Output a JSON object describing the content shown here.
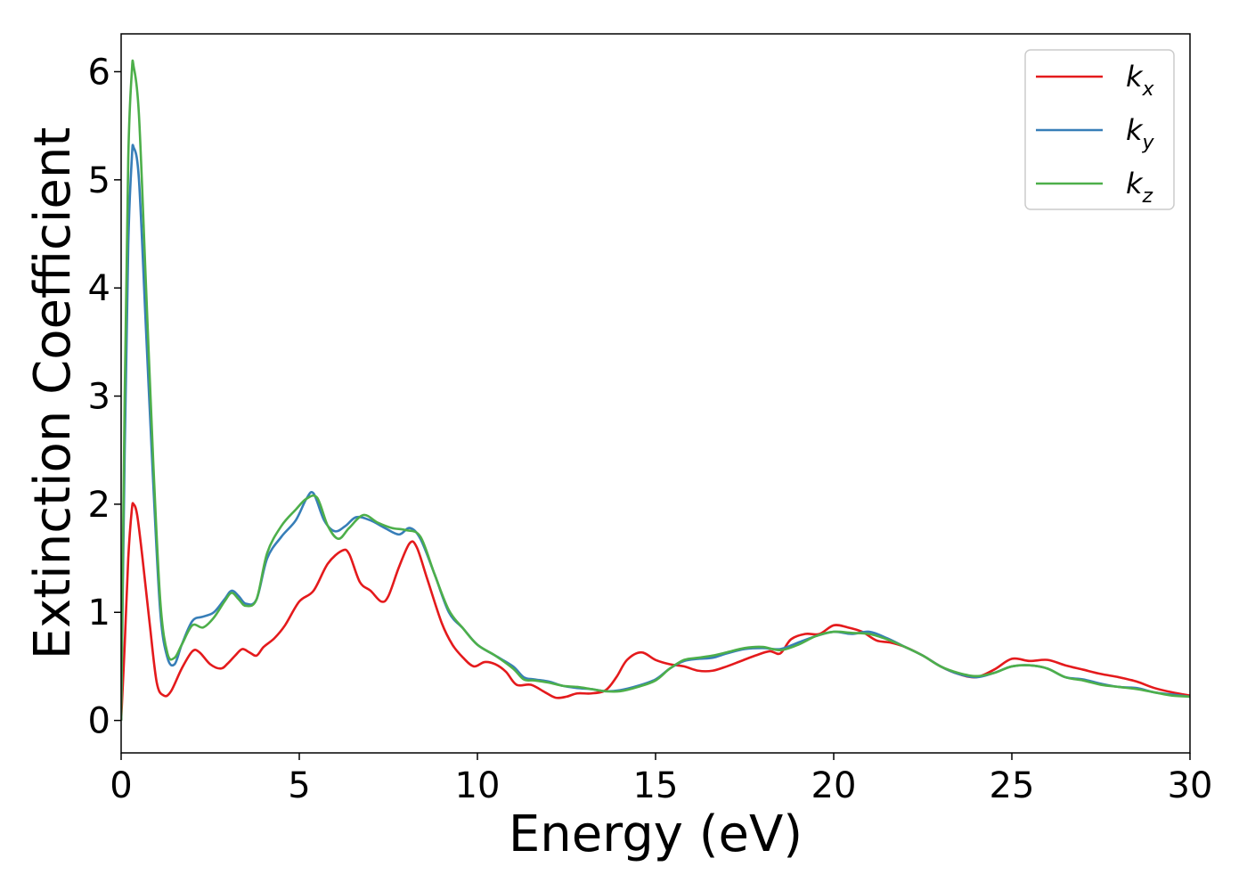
{
  "chart_data": {
    "type": "line",
    "title": "",
    "xlabel": "Energy (eV)",
    "ylabel": "Extinction Coefficient",
    "xlim": [
      0,
      30
    ],
    "ylim": [
      -0.3,
      6.35
    ],
    "xticks": [
      0,
      5,
      10,
      15,
      20,
      25,
      30
    ],
    "yticks": [
      0,
      1,
      2,
      3,
      4,
      5,
      6
    ],
    "grid": false,
    "legend_position": "top-right",
    "series": [
      {
        "name": "k",
        "subscript": "x",
        "color": "#e41a1c",
        "points": [
          [
            0,
            0
          ],
          [
            0.1,
            0.7
          ],
          [
            0.2,
            1.5
          ],
          [
            0.3,
            1.95
          ],
          [
            0.35,
            2.0
          ],
          [
            0.45,
            1.9
          ],
          [
            0.6,
            1.5
          ],
          [
            0.8,
            0.9
          ],
          [
            1.0,
            0.35
          ],
          [
            1.2,
            0.23
          ],
          [
            1.4,
            0.27
          ],
          [
            1.7,
            0.48
          ],
          [
            2.0,
            0.64
          ],
          [
            2.2,
            0.63
          ],
          [
            2.5,
            0.52
          ],
          [
            2.8,
            0.48
          ],
          [
            3.0,
            0.53
          ],
          [
            3.2,
            0.6
          ],
          [
            3.4,
            0.66
          ],
          [
            3.6,
            0.63
          ],
          [
            3.8,
            0.6
          ],
          [
            4.0,
            0.68
          ],
          [
            4.3,
            0.76
          ],
          [
            4.6,
            0.88
          ],
          [
            5.0,
            1.1
          ],
          [
            5.4,
            1.2
          ],
          [
            5.8,
            1.45
          ],
          [
            6.2,
            1.57
          ],
          [
            6.4,
            1.54
          ],
          [
            6.7,
            1.28
          ],
          [
            7.0,
            1.2
          ],
          [
            7.3,
            1.1
          ],
          [
            7.5,
            1.15
          ],
          [
            7.8,
            1.42
          ],
          [
            8.1,
            1.64
          ],
          [
            8.3,
            1.6
          ],
          [
            8.6,
            1.3
          ],
          [
            9.0,
            0.9
          ],
          [
            9.3,
            0.7
          ],
          [
            9.6,
            0.58
          ],
          [
            9.9,
            0.5
          ],
          [
            10.2,
            0.54
          ],
          [
            10.5,
            0.52
          ],
          [
            10.8,
            0.45
          ],
          [
            11.1,
            0.33
          ],
          [
            11.5,
            0.33
          ],
          [
            11.9,
            0.26
          ],
          [
            12.2,
            0.21
          ],
          [
            12.5,
            0.22
          ],
          [
            12.8,
            0.25
          ],
          [
            13.2,
            0.25
          ],
          [
            13.6,
            0.28
          ],
          [
            13.9,
            0.4
          ],
          [
            14.2,
            0.56
          ],
          [
            14.6,
            0.63
          ],
          [
            15.0,
            0.56
          ],
          [
            15.4,
            0.52
          ],
          [
            15.8,
            0.5
          ],
          [
            16.2,
            0.46
          ],
          [
            16.6,
            0.46
          ],
          [
            17.0,
            0.5
          ],
          [
            17.4,
            0.55
          ],
          [
            17.8,
            0.6
          ],
          [
            18.2,
            0.64
          ],
          [
            18.5,
            0.62
          ],
          [
            18.8,
            0.75
          ],
          [
            19.2,
            0.8
          ],
          [
            19.6,
            0.8
          ],
          [
            20.0,
            0.88
          ],
          [
            20.4,
            0.86
          ],
          [
            20.8,
            0.82
          ],
          [
            21.2,
            0.74
          ],
          [
            21.6,
            0.72
          ],
          [
            22.0,
            0.68
          ],
          [
            22.5,
            0.6
          ],
          [
            23.0,
            0.5
          ],
          [
            23.5,
            0.43
          ],
          [
            24.0,
            0.4
          ],
          [
            24.5,
            0.47
          ],
          [
            25.0,
            0.57
          ],
          [
            25.5,
            0.55
          ],
          [
            26.0,
            0.56
          ],
          [
            26.5,
            0.51
          ],
          [
            27.0,
            0.47
          ],
          [
            27.5,
            0.43
          ],
          [
            28.0,
            0.4
          ],
          [
            28.5,
            0.36
          ],
          [
            29.0,
            0.3
          ],
          [
            29.5,
            0.26
          ],
          [
            30.0,
            0.23
          ]
        ]
      },
      {
        "name": "k",
        "subscript": "y",
        "color": "#377eb8",
        "points": [
          [
            0,
            0
          ],
          [
            0.1,
            2.5
          ],
          [
            0.2,
            4.4
          ],
          [
            0.3,
            5.2
          ],
          [
            0.35,
            5.3
          ],
          [
            0.5,
            5.0
          ],
          [
            0.7,
            3.6
          ],
          [
            0.9,
            2.2
          ],
          [
            1.1,
            1.0
          ],
          [
            1.3,
            0.58
          ],
          [
            1.5,
            0.52
          ],
          [
            1.7,
            0.7
          ],
          [
            2.0,
            0.92
          ],
          [
            2.3,
            0.96
          ],
          [
            2.6,
            1.0
          ],
          [
            2.9,
            1.12
          ],
          [
            3.1,
            1.2
          ],
          [
            3.3,
            1.15
          ],
          [
            3.5,
            1.08
          ],
          [
            3.8,
            1.12
          ],
          [
            4.1,
            1.5
          ],
          [
            4.5,
            1.7
          ],
          [
            4.9,
            1.85
          ],
          [
            5.2,
            2.05
          ],
          [
            5.4,
            2.1
          ],
          [
            5.7,
            1.85
          ],
          [
            6.0,
            1.75
          ],
          [
            6.3,
            1.8
          ],
          [
            6.6,
            1.88
          ],
          [
            7.0,
            1.85
          ],
          [
            7.4,
            1.78
          ],
          [
            7.8,
            1.72
          ],
          [
            8.1,
            1.78
          ],
          [
            8.4,
            1.68
          ],
          [
            8.8,
            1.35
          ],
          [
            9.2,
            1.0
          ],
          [
            9.6,
            0.85
          ],
          [
            10.0,
            0.7
          ],
          [
            10.5,
            0.6
          ],
          [
            11.0,
            0.5
          ],
          [
            11.3,
            0.4
          ],
          [
            11.6,
            0.38
          ],
          [
            12.0,
            0.36
          ],
          [
            12.4,
            0.32
          ],
          [
            12.8,
            0.3
          ],
          [
            13.2,
            0.29
          ],
          [
            13.6,
            0.27
          ],
          [
            14.0,
            0.28
          ],
          [
            14.5,
            0.32
          ],
          [
            15.0,
            0.38
          ],
          [
            15.4,
            0.48
          ],
          [
            15.8,
            0.55
          ],
          [
            16.2,
            0.57
          ],
          [
            16.6,
            0.58
          ],
          [
            17.0,
            0.62
          ],
          [
            17.5,
            0.66
          ],
          [
            18.0,
            0.67
          ],
          [
            18.5,
            0.66
          ],
          [
            19.0,
            0.72
          ],
          [
            19.5,
            0.78
          ],
          [
            20.0,
            0.82
          ],
          [
            20.5,
            0.8
          ],
          [
            21.0,
            0.82
          ],
          [
            21.5,
            0.76
          ],
          [
            22.0,
            0.68
          ],
          [
            22.5,
            0.6
          ],
          [
            23.0,
            0.5
          ],
          [
            23.5,
            0.43
          ],
          [
            24.0,
            0.4
          ],
          [
            24.5,
            0.44
          ],
          [
            25.0,
            0.5
          ],
          [
            25.5,
            0.51
          ],
          [
            26.0,
            0.48
          ],
          [
            26.5,
            0.4
          ],
          [
            27.0,
            0.38
          ],
          [
            27.5,
            0.34
          ],
          [
            28.0,
            0.31
          ],
          [
            28.5,
            0.3
          ],
          [
            29.0,
            0.26
          ],
          [
            29.5,
            0.24
          ],
          [
            30.0,
            0.22
          ]
        ]
      },
      {
        "name": "k",
        "subscript": "z",
        "color": "#4daf4a",
        "points": [
          [
            0,
            0
          ],
          [
            0.1,
            3.0
          ],
          [
            0.2,
            5.2
          ],
          [
            0.3,
            6.0
          ],
          [
            0.35,
            6.05
          ],
          [
            0.5,
            5.6
          ],
          [
            0.7,
            4.0
          ],
          [
            0.9,
            2.4
          ],
          [
            1.1,
            1.1
          ],
          [
            1.3,
            0.62
          ],
          [
            1.5,
            0.58
          ],
          [
            1.7,
            0.7
          ],
          [
            2.0,
            0.88
          ],
          [
            2.3,
            0.86
          ],
          [
            2.6,
            0.95
          ],
          [
            2.9,
            1.1
          ],
          [
            3.1,
            1.18
          ],
          [
            3.3,
            1.12
          ],
          [
            3.5,
            1.06
          ],
          [
            3.8,
            1.12
          ],
          [
            4.1,
            1.55
          ],
          [
            4.5,
            1.8
          ],
          [
            4.9,
            1.95
          ],
          [
            5.2,
            2.05
          ],
          [
            5.5,
            2.06
          ],
          [
            5.8,
            1.8
          ],
          [
            6.1,
            1.68
          ],
          [
            6.4,
            1.78
          ],
          [
            6.8,
            1.9
          ],
          [
            7.2,
            1.83
          ],
          [
            7.6,
            1.78
          ],
          [
            8.0,
            1.76
          ],
          [
            8.4,
            1.7
          ],
          [
            8.8,
            1.35
          ],
          [
            9.2,
            1.02
          ],
          [
            9.6,
            0.85
          ],
          [
            10.0,
            0.7
          ],
          [
            10.5,
            0.6
          ],
          [
            11.0,
            0.48
          ],
          [
            11.3,
            0.38
          ],
          [
            11.6,
            0.37
          ],
          [
            12.0,
            0.35
          ],
          [
            12.4,
            0.32
          ],
          [
            12.8,
            0.31
          ],
          [
            13.2,
            0.29
          ],
          [
            13.6,
            0.27
          ],
          [
            14.0,
            0.27
          ],
          [
            14.5,
            0.31
          ],
          [
            15.0,
            0.37
          ],
          [
            15.4,
            0.48
          ],
          [
            15.8,
            0.56
          ],
          [
            16.2,
            0.58
          ],
          [
            16.6,
            0.6
          ],
          [
            17.0,
            0.63
          ],
          [
            17.5,
            0.67
          ],
          [
            18.0,
            0.68
          ],
          [
            18.5,
            0.65
          ],
          [
            19.0,
            0.7
          ],
          [
            19.5,
            0.78
          ],
          [
            20.0,
            0.82
          ],
          [
            20.5,
            0.81
          ],
          [
            21.0,
            0.8
          ],
          [
            21.5,
            0.75
          ],
          [
            22.0,
            0.68
          ],
          [
            22.5,
            0.6
          ],
          [
            23.0,
            0.5
          ],
          [
            23.5,
            0.44
          ],
          [
            24.0,
            0.41
          ],
          [
            24.5,
            0.44
          ],
          [
            25.0,
            0.5
          ],
          [
            25.5,
            0.51
          ],
          [
            26.0,
            0.48
          ],
          [
            26.5,
            0.4
          ],
          [
            27.0,
            0.37
          ],
          [
            27.5,
            0.33
          ],
          [
            28.0,
            0.31
          ],
          [
            28.5,
            0.29
          ],
          [
            29.0,
            0.26
          ],
          [
            29.5,
            0.23
          ],
          [
            30.0,
            0.22
          ]
        ]
      }
    ]
  }
}
